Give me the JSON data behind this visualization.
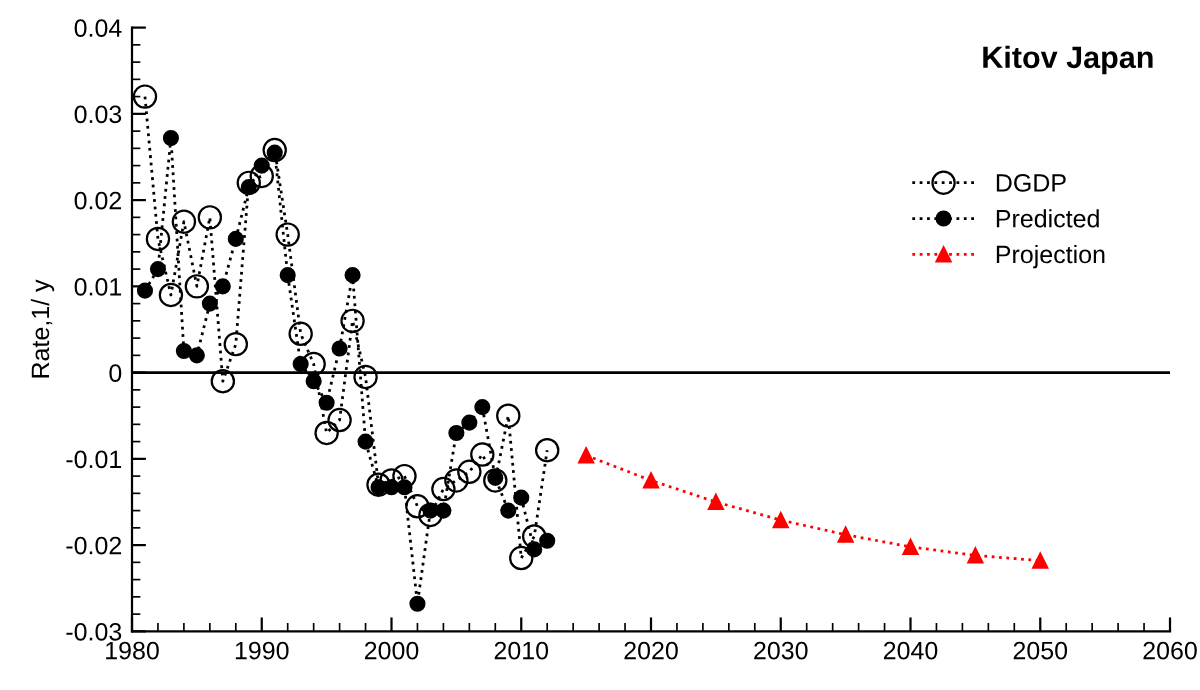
{
  "chart_data": {
    "type": "line",
    "title": "Kitov Japan",
    "ylabel": "Rate,1/ y",
    "xlim": [
      1980,
      2060
    ],
    "xticks": [
      1980,
      1990,
      2000,
      2010,
      2020,
      2030,
      2040,
      2050,
      2060
    ],
    "ylim": [
      -0.03,
      0.04
    ],
    "yticks": [
      -0.03,
      -0.02,
      -0.01,
      0,
      0.01,
      0.02,
      0.03,
      0.04
    ],
    "grid": false,
    "legend": "right",
    "line_style": "dotted",
    "ref_lines": [
      {
        "axis": "y",
        "value": 0,
        "label": null,
        "color": "#000000",
        "line_style": "solid"
      }
    ],
    "series": [
      {
        "name": "DGDP",
        "color": "#000000",
        "marker": "circle",
        "x": [
          1981,
          1982,
          1983,
          1984,
          1985,
          1986,
          1987,
          1988,
          1989,
          1990,
          1991,
          1992,
          1993,
          1994,
          1995,
          1996,
          1997,
          1998,
          1999,
          2000,
          2001,
          2002,
          2003,
          2004,
          2005,
          2006,
          2007,
          2008,
          2009,
          2010,
          2011,
          2012
        ],
        "values": [
          0.032,
          0.0155,
          0.009,
          0.0175,
          0.01,
          0.018,
          -0.001,
          0.0033,
          0.022,
          0.0228,
          0.0258,
          0.016,
          0.0045,
          0.001,
          -0.007,
          -0.0055,
          0.006,
          -0.0005,
          -0.013,
          -0.0125,
          -0.012,
          -0.0155,
          -0.0165,
          -0.0135,
          -0.0125,
          -0.0115,
          -0.0095,
          -0.0125,
          -0.005,
          -0.0215,
          -0.019,
          -0.009
        ]
      },
      {
        "name": "Predicted",
        "color": "#000000",
        "marker": "circle",
        "x": [
          1981,
          1982,
          1983,
          1984,
          1985,
          1986,
          1987,
          1988,
          1989,
          1990,
          1991,
          1992,
          1993,
          1994,
          1995,
          1996,
          1997,
          1998,
          1999,
          2000,
          2001,
          2002,
          2003,
          2004,
          2005,
          2006,
          2007,
          2008,
          2009,
          2010,
          2011,
          2012
        ],
        "values": [
          0.0095,
          0.012,
          0.0272,
          0.0025,
          0.002,
          0.008,
          0.01,
          0.0155,
          0.0215,
          0.024,
          0.0255,
          0.0113,
          0.001,
          -0.001,
          -0.0035,
          0.0028,
          0.0113,
          -0.008,
          -0.0133,
          -0.0133,
          -0.0133,
          -0.0268,
          -0.016,
          -0.016,
          -0.007,
          -0.0058,
          -0.004,
          -0.0122,
          -0.016,
          -0.0145,
          -0.0205,
          -0.0195
        ]
      },
      {
        "name": "Projection",
        "color": "#ff0000",
        "marker": "triangle",
        "x": [
          2015,
          2020,
          2025,
          2030,
          2035,
          2040,
          2045,
          2050
        ],
        "values": [
          -0.0096,
          -0.0125,
          -0.015,
          -0.0171,
          -0.0188,
          -0.0202,
          -0.0212,
          -0.0218
        ]
      }
    ]
  }
}
